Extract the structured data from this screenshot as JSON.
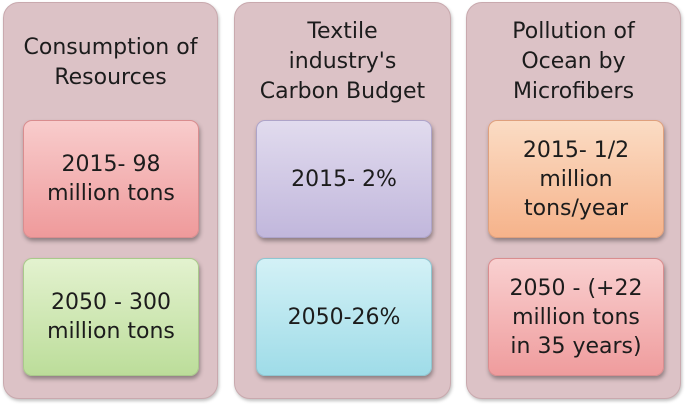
{
  "panels": [
    {
      "title": "Consumption of\nResources",
      "items": [
        "2015- 98\nmillion tons",
        "2050 - 300\nmillion tons"
      ]
    },
    {
      "title": "Textile\nindustry's\nCarbon Budget",
      "items": [
        "2015- 2%",
        "2050-26%"
      ]
    },
    {
      "title": "Pollution of\nOcean by\nMicrofibers",
      "items": [
        "2015- 1/2\nmillion\ntons/year",
        "2050 - (+22\nmillion tons\nin 35 years)"
      ]
    }
  ],
  "colors": {
    "panel": "#dcc2c6",
    "red": "#ef9a9b",
    "green": "#bcdd9a",
    "purple": "#c1b7dc",
    "cyan": "#9fdce8",
    "orange": "#f6b38b",
    "pink": "#ef9c9d"
  }
}
